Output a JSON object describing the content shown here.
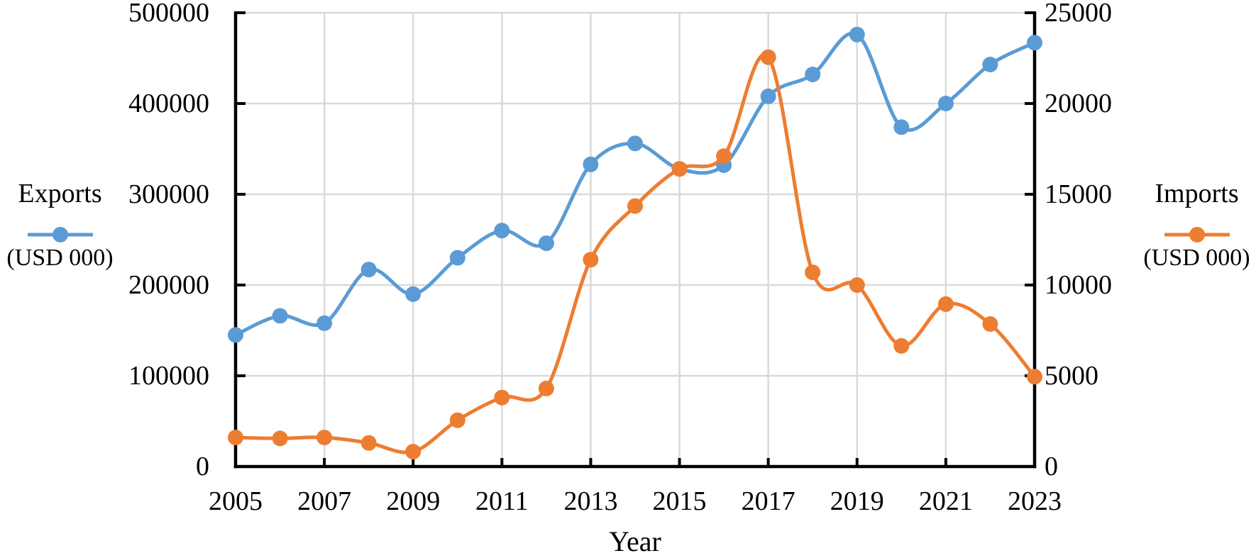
{
  "chart_data": {
    "type": "line",
    "smooth": true,
    "grid": true,
    "background": "#ffffff",
    "grid_color": "#d9d9d9",
    "axis_color": "#000000",
    "xlabel": "Year",
    "x": [
      2005,
      2006,
      2007,
      2008,
      2009,
      2010,
      2011,
      2012,
      2013,
      2014,
      2015,
      2016,
      2017,
      2018,
      2019,
      2020,
      2021,
      2022,
      2023
    ],
    "x_tick_labels": [
      "2005",
      "2007",
      "2009",
      "2011",
      "2013",
      "2015",
      "2017",
      "2019",
      "2021",
      "2023"
    ],
    "left_axis": {
      "min": 0,
      "max": 500000,
      "step": 100000,
      "labels": [
        "0",
        "100000",
        "200000",
        "300000",
        "400000",
        "500000"
      ]
    },
    "right_axis": {
      "min": 0,
      "max": 25000,
      "step": 5000,
      "labels": [
        "0",
        "5000",
        "10000",
        "15000",
        "20000",
        "25000"
      ]
    },
    "series": [
      {
        "name": "Exports",
        "unit_label": "(USD 000)",
        "axis": "left",
        "color": "#5b9bd5",
        "values": [
          145000,
          166000,
          158000,
          217000,
          190000,
          230000,
          260000,
          246000,
          333000,
          356000,
          328000,
          332000,
          408000,
          432000,
          476000,
          374000,
          400000,
          443000,
          467000
        ]
      },
      {
        "name": "Imports",
        "unit_label": "(USD 000)",
        "axis": "right",
        "color": "#ed7d31",
        "values": [
          1600,
          1550,
          1600,
          1300,
          820,
          2550,
          3800,
          4300,
          11400,
          14350,
          16400,
          17100,
          22550,
          10700,
          10000,
          6650,
          8950,
          7850,
          4950
        ]
      }
    ]
  }
}
